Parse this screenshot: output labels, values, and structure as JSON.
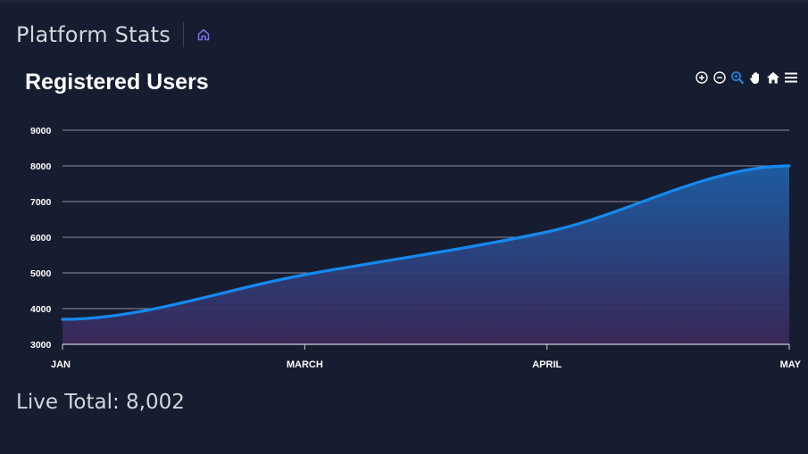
{
  "header": {
    "title": "Platform Stats"
  },
  "toolbar": {
    "icons": [
      "zoom-in-icon",
      "zoom-out-icon",
      "zoom-select-icon",
      "pan-hand-icon",
      "reset-home-icon",
      "menu-icon"
    ],
    "active_color": "#1e88e5"
  },
  "chart_data": {
    "type": "area",
    "title": "Registered Users",
    "xlabel": "",
    "ylabel": "",
    "x_ticks": [
      "JAN",
      "MARCH",
      "APRIL",
      "MAY"
    ],
    "x": [
      "JAN",
      "MARCH",
      "APRIL",
      "MAY"
    ],
    "series": [
      {
        "values": [
          3700,
          4950,
          6150,
          8000
        ]
      }
    ],
    "y_ticks": [
      3000,
      4000,
      5000,
      6000,
      7000,
      8000,
      9000
    ],
    "ylim": [
      3000,
      9000
    ],
    "grid": true,
    "colors": {
      "line": "#1589f0",
      "fill_top": "#1d5fa6",
      "fill_bottom": "#3a2758",
      "grid": "#8c90a0",
      "axis": "#cfd2da"
    }
  },
  "footer": {
    "live_total": "Live Total: 8,002"
  },
  "colors": {
    "background": "#171d30",
    "accent": "#7b6cf0"
  }
}
